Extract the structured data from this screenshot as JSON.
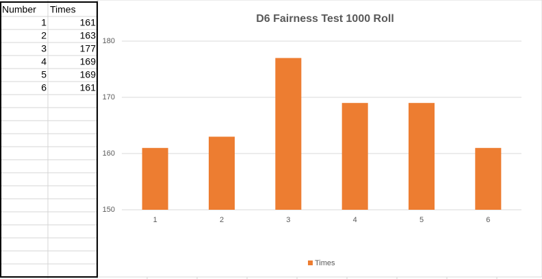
{
  "table": {
    "header": [
      "Number",
      "Times"
    ],
    "rows": [
      [
        1,
        161
      ],
      [
        2,
        163
      ],
      [
        3,
        177
      ],
      [
        4,
        169
      ],
      [
        5,
        169
      ],
      [
        6,
        161
      ]
    ]
  },
  "chart_data": {
    "type": "bar",
    "title": "D6 Fairness Test 1000 Roll",
    "categories": [
      "1",
      "2",
      "3",
      "4",
      "5",
      "6"
    ],
    "series": [
      {
        "name": "Times",
        "color": "#ed7d31",
        "values": [
          161,
          163,
          177,
          169,
          169,
          161
        ]
      }
    ],
    "ylim": [
      150,
      180
    ],
    "yticks": [
      150,
      160,
      170,
      180
    ],
    "grid": true,
    "legend": "bottom"
  }
}
